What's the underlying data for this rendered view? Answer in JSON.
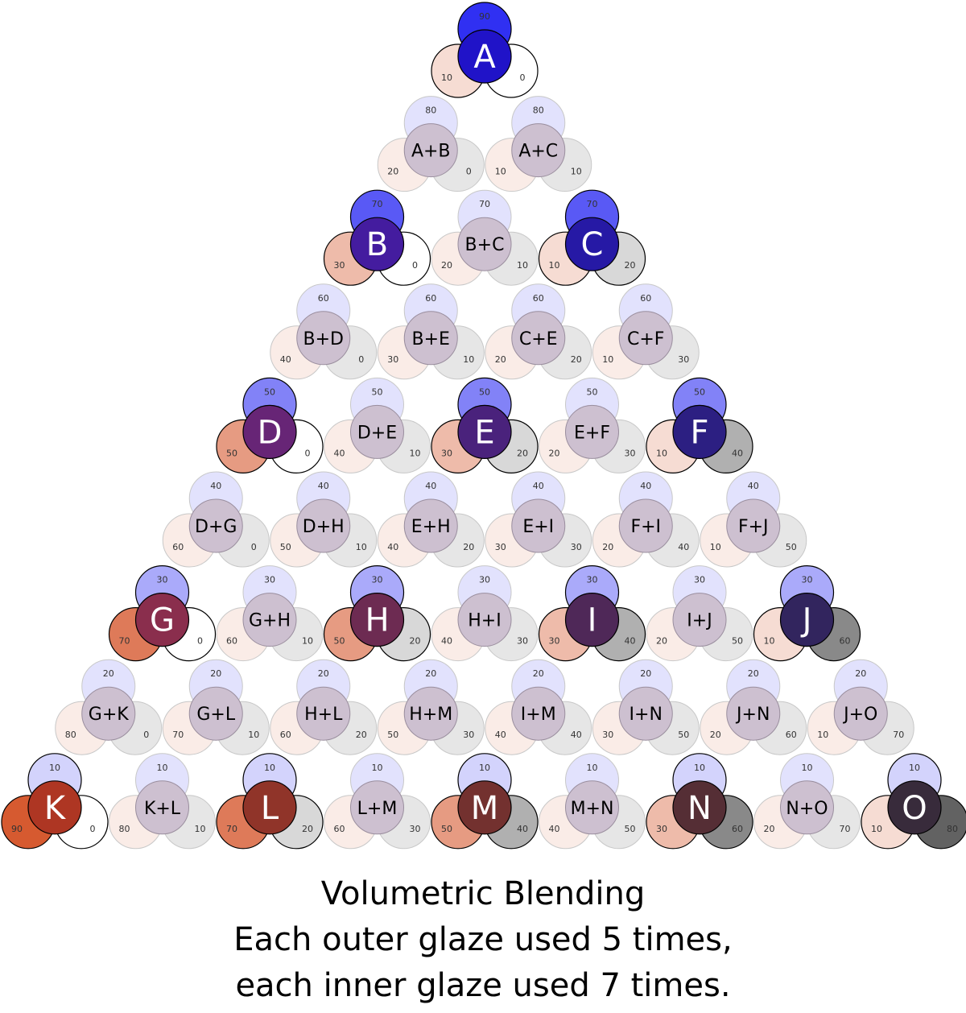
{
  "colors": {
    "blue": "#1010f0",
    "red": "#d04010",
    "black": "#303030"
  },
  "caption": {
    "line1": "Volumetric Blending",
    "line2": "Each outer glaze used 5 times,",
    "line3": "each inner glaze used 7 times."
  },
  "rows": [
    [
      {
        "label": "A",
        "blue": 90,
        "red": 10,
        "black": 0,
        "primary": true
      }
    ],
    [
      {
        "label": "A+B",
        "blue": 80,
        "red": 20,
        "black": 0,
        "primary": false
      },
      {
        "label": "A+C",
        "blue": 80,
        "red": 10,
        "black": 10,
        "primary": false
      }
    ],
    [
      {
        "label": "B",
        "blue": 70,
        "red": 30,
        "black": 0,
        "primary": true
      },
      {
        "label": "B+C",
        "blue": 70,
        "red": 20,
        "black": 10,
        "primary": false
      },
      {
        "label": "C",
        "blue": 70,
        "red": 10,
        "black": 20,
        "primary": true
      }
    ],
    [
      {
        "label": "B+D",
        "blue": 60,
        "red": 40,
        "black": 0,
        "primary": false
      },
      {
        "label": "B+E",
        "blue": 60,
        "red": 30,
        "black": 10,
        "primary": false
      },
      {
        "label": "C+E",
        "blue": 60,
        "red": 20,
        "black": 20,
        "primary": false
      },
      {
        "label": "C+F",
        "blue": 60,
        "red": 10,
        "black": 30,
        "primary": false
      }
    ],
    [
      {
        "label": "D",
        "blue": 50,
        "red": 50,
        "black": 0,
        "primary": true
      },
      {
        "label": "D+E",
        "blue": 50,
        "red": 40,
        "black": 10,
        "primary": false
      },
      {
        "label": "E",
        "blue": 50,
        "red": 30,
        "black": 20,
        "primary": true
      },
      {
        "label": "E+F",
        "blue": 50,
        "red": 20,
        "black": 30,
        "primary": false
      },
      {
        "label": "F",
        "blue": 50,
        "red": 10,
        "black": 40,
        "primary": true
      }
    ],
    [
      {
        "label": "D+G",
        "blue": 40,
        "red": 60,
        "black": 0,
        "primary": false
      },
      {
        "label": "D+H",
        "blue": 40,
        "red": 50,
        "black": 10,
        "primary": false
      },
      {
        "label": "E+H",
        "blue": 40,
        "red": 40,
        "black": 20,
        "primary": false
      },
      {
        "label": "E+I",
        "blue": 40,
        "red": 30,
        "black": 30,
        "primary": false
      },
      {
        "label": "F+I",
        "blue": 40,
        "red": 20,
        "black": 40,
        "primary": false
      },
      {
        "label": "F+J",
        "blue": 40,
        "red": 10,
        "black": 50,
        "primary": false
      }
    ],
    [
      {
        "label": "G",
        "blue": 30,
        "red": 70,
        "black": 0,
        "primary": true
      },
      {
        "label": "G+H",
        "blue": 30,
        "red": 60,
        "black": 10,
        "primary": false
      },
      {
        "label": "H",
        "blue": 30,
        "red": 50,
        "black": 20,
        "primary": true
      },
      {
        "label": "H+I",
        "blue": 30,
        "red": 40,
        "black": 30,
        "primary": false
      },
      {
        "label": "I",
        "blue": 30,
        "red": 30,
        "black": 40,
        "primary": true
      },
      {
        "label": "I+J",
        "blue": 30,
        "red": 20,
        "black": 50,
        "primary": false
      },
      {
        "label": "J",
        "blue": 30,
        "red": 10,
        "black": 60,
        "primary": true
      }
    ],
    [
      {
        "label": "G+K",
        "blue": 20,
        "red": 80,
        "black": 0,
        "primary": false
      },
      {
        "label": "G+L",
        "blue": 20,
        "red": 70,
        "black": 10,
        "primary": false
      },
      {
        "label": "H+L",
        "blue": 20,
        "red": 60,
        "black": 20,
        "primary": false
      },
      {
        "label": "H+M",
        "blue": 20,
        "red": 50,
        "black": 30,
        "primary": false
      },
      {
        "label": "I+M",
        "blue": 20,
        "red": 40,
        "black": 40,
        "primary": false
      },
      {
        "label": "I+N",
        "blue": 20,
        "red": 30,
        "black": 50,
        "primary": false
      },
      {
        "label": "J+N",
        "blue": 20,
        "red": 20,
        "black": 60,
        "primary": false
      },
      {
        "label": "J+O",
        "blue": 20,
        "red": 10,
        "black": 70,
        "primary": false
      }
    ],
    [
      {
        "label": "K",
        "blue": 10,
        "red": 90,
        "black": 0,
        "primary": true
      },
      {
        "label": "K+L",
        "blue": 10,
        "red": 80,
        "black": 10,
        "primary": false
      },
      {
        "label": "L",
        "blue": 10,
        "red": 70,
        "black": 20,
        "primary": true
      },
      {
        "label": "L+M",
        "blue": 10,
        "red": 60,
        "black": 30,
        "primary": false
      },
      {
        "label": "M",
        "blue": 10,
        "red": 50,
        "black": 40,
        "primary": true
      },
      {
        "label": "M+N",
        "blue": 10,
        "red": 40,
        "black": 50,
        "primary": false
      },
      {
        "label": "N",
        "blue": 10,
        "red": 30,
        "black": 60,
        "primary": true
      },
      {
        "label": "N+O",
        "blue": 10,
        "red": 20,
        "black": 70,
        "primary": false
      },
      {
        "label": "O",
        "blue": 10,
        "red": 10,
        "black": 80,
        "primary": true
      }
    ]
  ]
}
